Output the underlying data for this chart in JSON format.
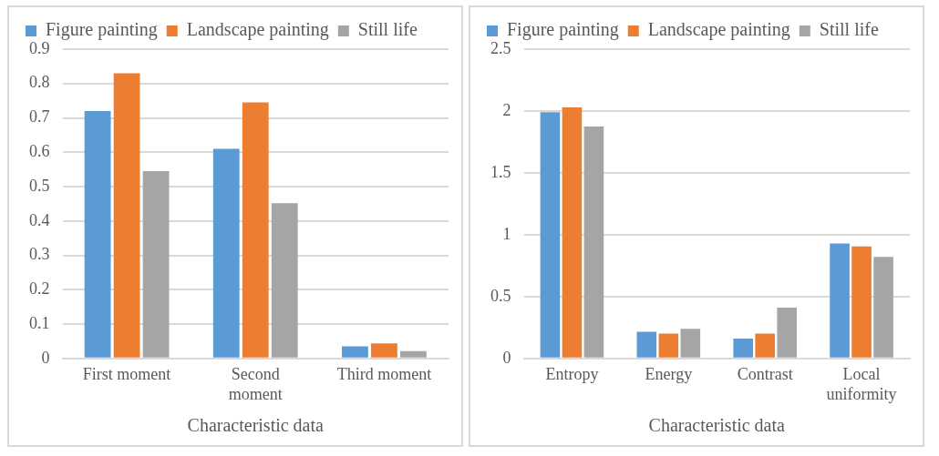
{
  "chart_data": [
    {
      "type": "bar",
      "xlabel": "Characteristic data",
      "categories": [
        "First moment",
        "Second moment",
        "Third moment"
      ],
      "series": [
        {
          "name": "Figure painting",
          "color": "#5b9bd5",
          "values": [
            0.72,
            0.61,
            0.035
          ]
        },
        {
          "name": "Landscape painting",
          "color": "#ed7d31",
          "values": [
            0.83,
            0.745,
            0.044
          ]
        },
        {
          "name": "Still life",
          "color": "#a5a5a5",
          "values": [
            0.545,
            0.452,
            0.021
          ]
        }
      ],
      "ylim": [
        0,
        0.9
      ],
      "yticks": [
        0,
        0.1,
        0.2,
        0.3,
        0.4,
        0.5,
        0.6,
        0.7,
        0.8,
        0.9
      ],
      "grid": "y",
      "legend": "top"
    },
    {
      "type": "bar",
      "xlabel": "Characteristic data",
      "categories": [
        "Entropy",
        "Energy",
        "Contrast",
        "Local uniformity"
      ],
      "series": [
        {
          "name": "Figure painting",
          "color": "#5b9bd5",
          "values": [
            1.99,
            0.216,
            0.16,
            0.93
          ]
        },
        {
          "name": "Landscape painting",
          "color": "#ed7d31",
          "values": [
            2.03,
            0.2,
            0.2,
            0.905
          ]
        },
        {
          "name": "Still life",
          "color": "#a5a5a5",
          "values": [
            1.875,
            0.24,
            0.41,
            0.82
          ]
        }
      ],
      "ylim": [
        0,
        2.5
      ],
      "yticks": [
        0,
        0.5,
        1,
        1.5,
        2,
        2.5
      ],
      "grid": "y",
      "legend": "top"
    }
  ]
}
